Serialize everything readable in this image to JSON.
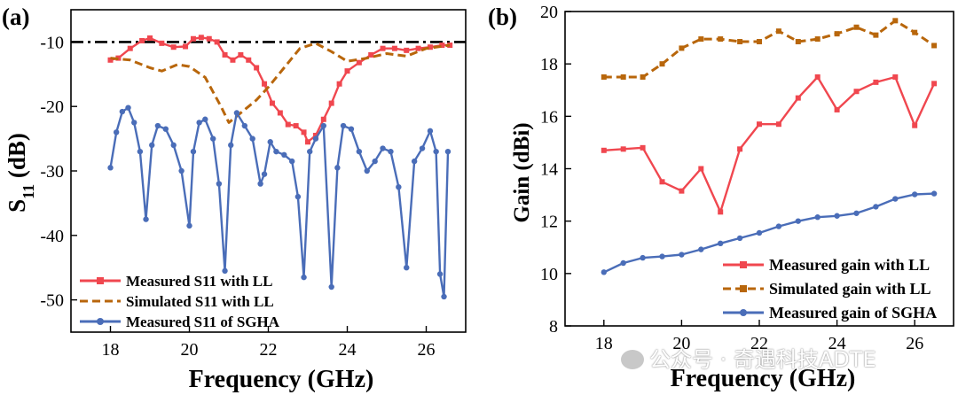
{
  "chart_data": [
    {
      "type": "line",
      "panel_label": "(a)",
      "xlabel": "Frequency (GHz)",
      "ylabel_main": "S",
      "ylabel_sub": "11",
      "ylabel_unit": " (dB)",
      "xlim": [
        17,
        27
      ],
      "ylim": [
        -55,
        -5
      ],
      "xticks": [
        18,
        20,
        22,
        24,
        26
      ],
      "yticks": [
        -10,
        -20,
        -30,
        -40,
        -50
      ],
      "grid": false,
      "legend_position": "bottom-left",
      "reference_line": {
        "y": -10,
        "style": "dash-dot",
        "color": "#000000"
      },
      "series": [
        {
          "name": "Measured S11 with LL",
          "color": "#f0474f",
          "style": "solid",
          "marker": "square",
          "x": [
            18,
            18.2,
            18.5,
            18.8,
            19.0,
            19.3,
            19.6,
            19.9,
            20.1,
            20.3,
            20.5,
            20.7,
            20.9,
            21.1,
            21.3,
            21.5,
            21.7,
            21.9,
            22.1,
            22.3,
            22.5,
            22.7,
            22.9,
            23.0,
            23.2,
            23.4,
            23.6,
            23.8,
            24.0,
            24.3,
            24.6,
            24.9,
            25.2,
            25.5,
            25.8,
            26.1,
            26.4,
            26.6
          ],
          "y": [
            -12.8,
            -12.5,
            -11.0,
            -9.8,
            -9.4,
            -10.2,
            -10.8,
            -10.7,
            -9.5,
            -9.3,
            -9.5,
            -10.0,
            -12.0,
            -12.8,
            -12.0,
            -12.8,
            -14.0,
            -16.5,
            -19.5,
            -21.0,
            -22.8,
            -23.0,
            -24.0,
            -25.5,
            -24.5,
            -22.0,
            -19.5,
            -16.5,
            -14.5,
            -13.2,
            -12.0,
            -11.0,
            -11.0,
            -11.3,
            -11.0,
            -10.8,
            -10.5,
            -10.5
          ]
        },
        {
          "name": "Simulated S11 with LL",
          "color": "#b8660b",
          "style": "dashed",
          "marker": "none",
          "x": [
            18,
            18.5,
            19.0,
            19.3,
            19.7,
            20.0,
            20.4,
            20.8,
            21.0,
            21.3,
            21.7,
            22.0,
            22.4,
            22.8,
            23.2,
            23.6,
            24.0,
            24.5,
            25.0,
            25.5,
            26.0,
            26.6
          ],
          "y": [
            -12.5,
            -12.8,
            -14.0,
            -14.5,
            -13.5,
            -13.8,
            -15.5,
            -20.0,
            -22.5,
            -21.0,
            -19.0,
            -17.0,
            -14.0,
            -11.0,
            -10.2,
            -11.5,
            -13.0,
            -12.5,
            -11.8,
            -12.2,
            -11.0,
            -10.5
          ]
        },
        {
          "name": "Measured S11 of SGHA",
          "color": "#4a6db8",
          "style": "solid",
          "marker": "circle",
          "x": [
            18.0,
            18.15,
            18.3,
            18.45,
            18.6,
            18.75,
            18.9,
            19.05,
            19.2,
            19.4,
            19.6,
            19.8,
            20.0,
            20.1,
            20.25,
            20.4,
            20.6,
            20.75,
            20.9,
            21.05,
            21.2,
            21.4,
            21.6,
            21.8,
            21.9,
            22.05,
            22.2,
            22.4,
            22.6,
            22.75,
            22.9,
            23.05,
            23.2,
            23.4,
            23.6,
            23.75,
            23.9,
            24.1,
            24.3,
            24.5,
            24.7,
            24.9,
            25.1,
            25.3,
            25.5,
            25.7,
            25.9,
            26.1,
            26.25,
            26.35,
            26.45,
            26.55
          ],
          "y": [
            -29.5,
            -24.0,
            -20.8,
            -20.2,
            -22.5,
            -27.0,
            -37.5,
            -26.0,
            -23.0,
            -23.5,
            -26.0,
            -30.0,
            -38.5,
            -27.0,
            -22.5,
            -22.0,
            -25.0,
            -32.0,
            -45.5,
            -26.0,
            -21.0,
            -23.0,
            -25.0,
            -32.0,
            -30.5,
            -25.5,
            -27.0,
            -27.5,
            -28.5,
            -34.0,
            -46.5,
            -27.0,
            -25.0,
            -23.0,
            -48.0,
            -29.5,
            -23.0,
            -23.5,
            -27.0,
            -30.0,
            -28.5,
            -26.5,
            -27.0,
            -32.5,
            -45.0,
            -28.5,
            -26.5,
            -23.8,
            -27.0,
            -46.0,
            -49.5,
            -27.0
          ]
        }
      ]
    },
    {
      "type": "line",
      "panel_label": "(b)",
      "xlabel": "Frequency (GHz)",
      "ylabel": "Gain (dBi)",
      "xlim": [
        17,
        27
      ],
      "ylim": [
        8,
        20
      ],
      "xticks": [
        18,
        20,
        22,
        24,
        26
      ],
      "yticks": [
        8,
        10,
        12,
        14,
        16,
        18,
        20
      ],
      "grid": false,
      "legend_position": "bottom-right",
      "series": [
        {
          "name": "Measured gain with LL",
          "color": "#f0474f",
          "style": "solid",
          "marker": "square",
          "x": [
            18,
            18.5,
            19,
            19.5,
            20,
            20.5,
            21,
            21.5,
            22,
            22.5,
            23,
            23.5,
            24,
            24.5,
            25,
            25.5,
            26,
            26.5
          ],
          "y": [
            14.7,
            14.75,
            14.8,
            13.5,
            13.15,
            14.0,
            12.35,
            14.75,
            15.7,
            15.7,
            16.7,
            17.5,
            16.25,
            16.95,
            17.3,
            17.5,
            15.65,
            17.25
          ]
        },
        {
          "name": "Simulated gain with LL",
          "color": "#b8660b",
          "style": "dashed",
          "marker": "square",
          "x": [
            18,
            18.5,
            19,
            19.5,
            20,
            20.5,
            21,
            21.5,
            22,
            22.5,
            23,
            23.5,
            24,
            24.5,
            25,
            25.5,
            26,
            26.5
          ],
          "y": [
            17.5,
            17.5,
            17.5,
            18.0,
            18.6,
            18.95,
            18.95,
            18.85,
            18.85,
            19.25,
            18.85,
            18.95,
            19.15,
            19.4,
            19.1,
            19.65,
            19.2,
            18.7
          ]
        },
        {
          "name": "Measured gain of SGHA",
          "color": "#4a6db8",
          "style": "solid",
          "marker": "circle",
          "x": [
            18,
            18.5,
            19,
            19.5,
            20,
            20.5,
            21,
            21.5,
            22,
            22.5,
            23,
            23.5,
            24,
            24.5,
            25,
            25.5,
            26,
            26.5
          ],
          "y": [
            10.05,
            10.4,
            10.6,
            10.65,
            10.72,
            10.92,
            11.15,
            11.35,
            11.55,
            11.8,
            12.0,
            12.15,
            12.2,
            12.3,
            12.55,
            12.85,
            13.02,
            13.05
          ]
        }
      ]
    }
  ],
  "watermark": {
    "text": "公众号 · 奇遇科技ADTE",
    "icon": "wechat-icon"
  }
}
